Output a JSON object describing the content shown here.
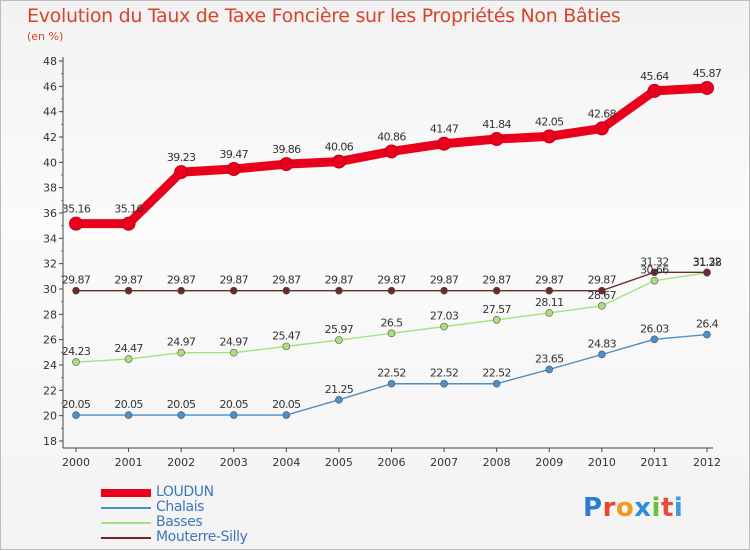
{
  "title": "Evolution du Taux de Taxe Foncière sur les Propriétés Non Bâties",
  "subtitle": "(en %)",
  "logo": {
    "letters": [
      "P",
      "r",
      "o",
      "x",
      "i",
      "t",
      "i"
    ],
    "colors": [
      "#2b7cd3",
      "#e8442e",
      "#f29a1f",
      "#2f8fd8",
      "#6cbf3b",
      "#e84b3a",
      "#3f9be0"
    ]
  },
  "chart_data": {
    "type": "line",
    "x": [
      "2000",
      "2001",
      "2002",
      "2003",
      "2004",
      "2005",
      "2006",
      "2007",
      "2008",
      "2009",
      "2010",
      "2011",
      "2012"
    ],
    "ylim": [
      18,
      48
    ],
    "yticks": [
      "18",
      "20",
      "22",
      "24",
      "26",
      "28",
      "30",
      "32",
      "34",
      "36",
      "38",
      "40",
      "42",
      "44",
      "46",
      "48"
    ],
    "grid": false,
    "legend_position": "bottom-left",
    "series": [
      {
        "name": "LOUDUN",
        "color": "#e8001c",
        "values": [
          35.16,
          35.16,
          39.23,
          39.47,
          39.86,
          40.06,
          40.86,
          41.47,
          41.84,
          42.05,
          42.68,
          45.64,
          45.87
        ],
        "labels": [
          "35.16",
          "35.16",
          "39.23",
          "39.47",
          "39.86",
          "40.06",
          "40.86",
          "41.47",
          "41.84",
          "42.05",
          "42.68",
          "45.64",
          "45.87"
        ]
      },
      {
        "name": "Chalais",
        "color": "#4d8fc7",
        "values": [
          20.05,
          20.05,
          20.05,
          20.05,
          20.05,
          21.25,
          22.52,
          22.52,
          22.52,
          23.65,
          24.83,
          26.03,
          26.4
        ],
        "labels": [
          "20.05",
          "20.05",
          "20.05",
          "20.05",
          "20.05",
          "21.25",
          "22.52",
          "22.52",
          "22.52",
          "23.65",
          "24.83",
          "26.03",
          "26.4"
        ]
      },
      {
        "name": "Basses",
        "color": "#a8e07d",
        "values": [
          24.23,
          24.47,
          24.97,
          24.97,
          25.47,
          25.97,
          26.5,
          27.03,
          27.57,
          28.11,
          28.67,
          30.66,
          31.28
        ],
        "labels": [
          "24.23",
          "24.47",
          "24.97",
          "24.97",
          "25.47",
          "25.97",
          "26.5",
          "27.03",
          "27.57",
          "28.11",
          "28.67",
          "30.66",
          "31.28"
        ]
      },
      {
        "name": "Mouterre-Silly",
        "color": "#6b2a2a",
        "values": [
          29.87,
          29.87,
          29.87,
          29.87,
          29.87,
          29.87,
          29.87,
          29.87,
          29.87,
          29.87,
          29.87,
          31.32,
          31.32
        ],
        "labels": [
          "29.87",
          "29.87",
          "29.87",
          "29.87",
          "29.87",
          "29.87",
          "29.87",
          "29.87",
          "29.87",
          "29.87",
          "29.87",
          "31.32",
          "31.32"
        ]
      }
    ]
  }
}
